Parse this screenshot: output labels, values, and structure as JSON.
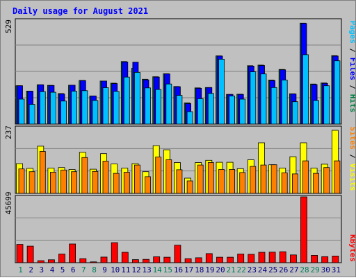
{
  "chart_data": [
    {
      "type": "bar",
      "panel": "top",
      "title": "Daily usage for August 2021",
      "y_tick_label": "529",
      "ylim": [
        0,
        529
      ],
      "categories": [
        "1",
        "2",
        "3",
        "4",
        "5",
        "6",
        "7",
        "8",
        "9",
        "10",
        "11",
        "12",
        "13",
        "14",
        "15",
        "16",
        "17",
        "18",
        "19",
        "20",
        "21",
        "22",
        "23",
        "24",
        "25",
        "26",
        "27",
        "28",
        "29",
        "30",
        "31"
      ],
      "series": [
        {
          "name": "Hits",
          "values": [
            195,
            168,
            200,
            197,
            155,
            198,
            222,
            143,
            219,
            208,
            318,
            284,
            228,
            241,
            256,
            191,
            108,
            184,
            186,
            347,
            151,
            152,
            297,
            300,
            224,
            278,
            154,
            514,
            204,
            209,
            348
          ]
        },
        {
          "name": "Files",
          "values": [
            195,
            167,
            200,
            196,
            153,
            198,
            221,
            143,
            219,
            206,
            316,
            315,
            225,
            239,
            255,
            190,
            104,
            182,
            186,
            346,
            151,
            151,
            295,
            298,
            221,
            276,
            153,
            512,
            201,
            207,
            346
          ]
        },
        {
          "name": "Pages",
          "values": [
            127,
            100,
            165,
            162,
            117,
            167,
            170,
            120,
            185,
            166,
            239,
            263,
            184,
            176,
            204,
            146,
            63,
            129,
            156,
            330,
            143,
            127,
            266,
            255,
            186,
            224,
            114,
            353,
            120,
            195,
            322
          ]
        }
      ],
      "legend": "right-vertical"
    },
    {
      "type": "bar",
      "panel": "middle",
      "y_tick_label": "237",
      "ylim": [
        0,
        237
      ],
      "categories": [
        "1",
        "2",
        "3",
        "4",
        "5",
        "6",
        "7",
        "8",
        "9",
        "10",
        "11",
        "12",
        "13",
        "14",
        "15",
        "16",
        "17",
        "18",
        "19",
        "20",
        "21",
        "22",
        "23",
        "24",
        "25",
        "26",
        "27",
        "28",
        "29",
        "30",
        "31"
      ],
      "series": [
        {
          "name": "Visits",
          "values": [
            107,
            90,
            170,
            91,
            93,
            86,
            148,
            87,
            143,
            106,
            91,
            107,
            78,
            172,
            157,
            111,
            55,
            111,
            119,
            112,
            112,
            89,
            121,
            182,
            103,
            91,
            132,
            182,
            91,
            105,
            227
          ]
        },
        {
          "name": "Sites",
          "values": [
            88,
            78,
            151,
            76,
            84,
            78,
            129,
            79,
            116,
            72,
            76,
            102,
            60,
            131,
            121,
            85,
            45,
            102,
            111,
            86,
            86,
            75,
            97,
            102,
            103,
            74,
            70,
            117,
            72,
            93,
            117
          ]
        }
      ],
      "legend": "right-vertical"
    },
    {
      "type": "bar",
      "panel": "bottom",
      "y_tick_label": "45699",
      "ylim": [
        0,
        45699
      ],
      "categories": [
        "1",
        "2",
        "3",
        "4",
        "5",
        "6",
        "7",
        "8",
        "9",
        "10",
        "11",
        "12",
        "13",
        "14",
        "15",
        "16",
        "17",
        "18",
        "19",
        "20",
        "21",
        "22",
        "23",
        "24",
        "25",
        "26",
        "27",
        "28",
        "29",
        "30",
        "31"
      ],
      "series": [
        {
          "name": "KBytes",
          "values": [
            12700,
            11500,
            1400,
            2000,
            6000,
            13000,
            2800,
            600,
            3900,
            13900,
            7200,
            2100,
            2300,
            4100,
            3800,
            12100,
            2800,
            3400,
            6300,
            3800,
            3800,
            6000,
            5800,
            7200,
            7300,
            7600,
            5400,
            45699,
            5100,
            4200,
            4600
          ]
        }
      ],
      "legend": "right-vertical"
    }
  ],
  "x_axis": {
    "labels": [
      "1",
      "2",
      "3",
      "4",
      "5",
      "6",
      "7",
      "8",
      "9",
      "10",
      "11",
      "12",
      "13",
      "14",
      "15",
      "16",
      "17",
      "18",
      "19",
      "20",
      "21",
      "22",
      "23",
      "24",
      "25",
      "26",
      "27",
      "28",
      "29",
      "30",
      "31"
    ],
    "weekend_days": [
      "1",
      "7",
      "8",
      "14",
      "15",
      "21",
      "22",
      "28",
      "29"
    ]
  },
  "legend_labels": {
    "hits": "Hits",
    "files": "Files",
    "pages": "Pages",
    "visits": "Visits",
    "sites": "Sites",
    "kbytes": "KBytes",
    "separator": " / "
  },
  "colors": {
    "background": "#c0c0c0",
    "plot_background": "#c0c0c0",
    "gridline": "#808080",
    "title": "#0000ff",
    "hits": "#008040",
    "files": "#0000ff",
    "pages": "#00c0ff",
    "visits": "#ffff00",
    "sites": "#ff8000",
    "kbytes": "#ff0000",
    "label_weekday": "#000080",
    "label_weekend": "#00805c",
    "bar_outline": "#000000"
  }
}
